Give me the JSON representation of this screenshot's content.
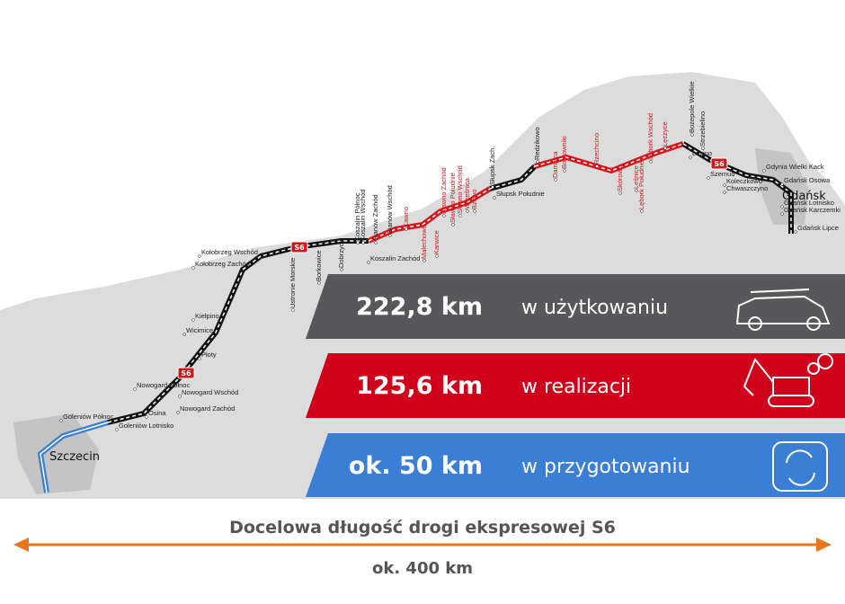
{
  "map": {
    "cities": [
      "Szczecin",
      "Gdańsk"
    ],
    "road_sign": "S6",
    "stations": [
      "Goleniów Północ",
      "Goleniów Lotnisko",
      "Osina",
      "Nowogard Zachód",
      "Nowogard Północ",
      "Nowogard Wschód",
      "Płoty",
      "Wicimice",
      "Kiełpino",
      "Kołobrzeg Zachód",
      "Kołobrzeg Wschód",
      "Ustronie Morskie",
      "Borkowice",
      "Dobrzyca",
      "Koszalin Zachód",
      "Koszalin Północ",
      "Koszalin Wschód",
      "Sianów Zachód",
      "Sianów Wschód",
      "Kawno",
      "Malechowo",
      "Karwice",
      "Sławno Zachód",
      "Sławno Południe",
      "Sławno Wschód",
      "Wrześnica",
      "Bzowo",
      "Słupsk Zach.",
      "Słupsk Południe",
      "Redzikowo",
      "Damnica",
      "Bobrowniki",
      "Rzechcino",
      "Skórowo",
      "Leśnice",
      "Lębork Południe",
      "Lębork Wschód",
      "Łęczyce",
      "Luzino",
      "Bożepole Wielkie",
      "Strzebielino",
      "Szemud",
      "Koleczkowo",
      "Chwaszczyno",
      "Gdynia Wielki Kack",
      "Gdańsk Osowa",
      "Gdańsk Lotnisko",
      "Gdańsk Karczemki",
      "Gdańsk Lipce"
    ]
  },
  "status": [
    {
      "length": "222,8 km",
      "label": "w użytkowaniu"
    },
    {
      "length": "125,6 km",
      "label": "w realizacji"
    },
    {
      "length": "ok. 50 km",
      "label": "w przygotowaniu"
    }
  ],
  "footer": {
    "caption": "Docelowa długość drogi ekspresowej S6",
    "total": "ok. 400 km"
  }
}
